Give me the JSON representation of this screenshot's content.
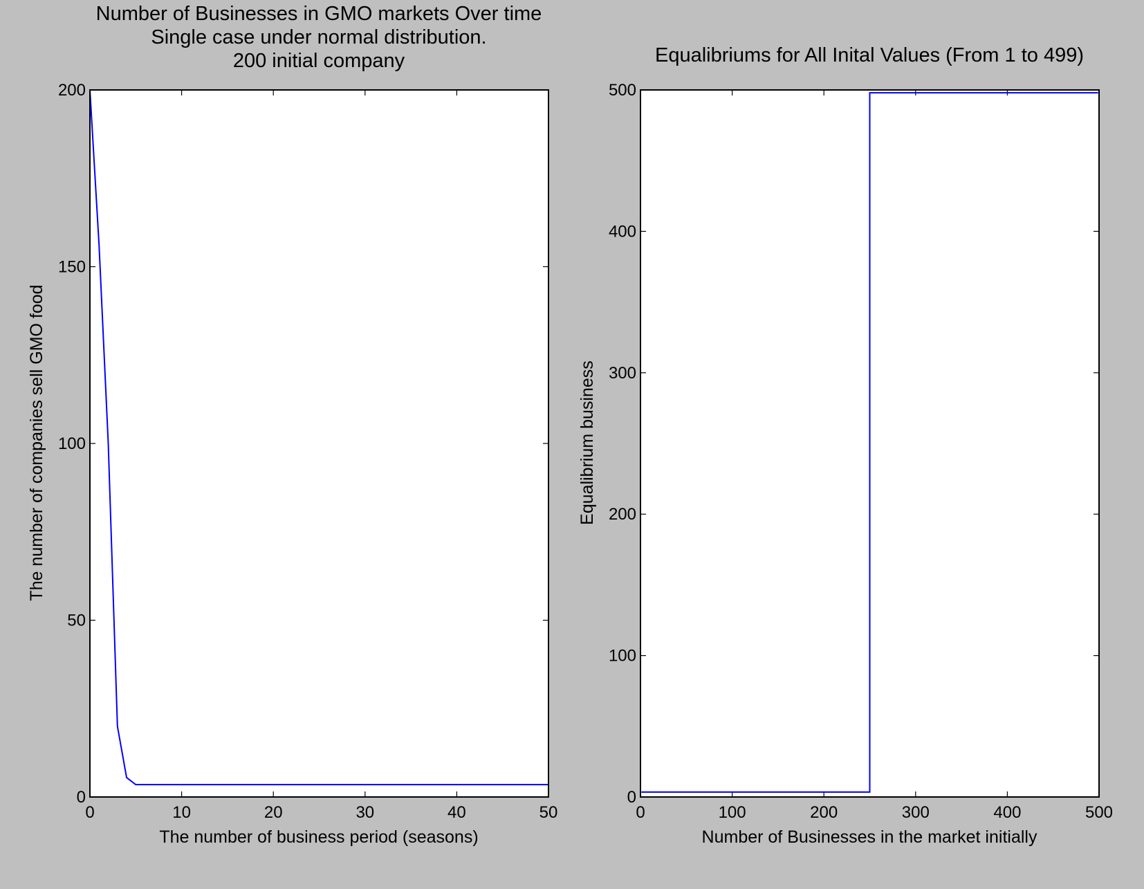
{
  "figure": {
    "background": "#bfbfbf",
    "axes_background": "#ffffff",
    "line_color": "#0000ff"
  },
  "chart_data": [
    {
      "type": "line",
      "title_lines": [
        "Number of Businesses in GMO markets Over time",
        "Single case under normal distribution.",
        "200 initial company"
      ],
      "xlabel": "The number of business period (seasons)",
      "ylabel": "The number of companies sell GMO food",
      "xlim": [
        0,
        50
      ],
      "ylim": [
        0,
        200
      ],
      "xticks": [
        0,
        10,
        20,
        30,
        40,
        50
      ],
      "yticks": [
        0,
        50,
        100,
        150,
        200
      ],
      "xtick_labels": [
        "0",
        "10",
        "20",
        "30",
        "40",
        "50"
      ],
      "ytick_labels": [
        "0",
        "50",
        "100",
        "150",
        "200"
      ],
      "grid": false,
      "series": [
        {
          "color": "#0000ff",
          "x": [
            0,
            1,
            2,
            3,
            4,
            5,
            6,
            10,
            20,
            30,
            40,
            50
          ],
          "y": [
            200,
            156,
            100,
            20,
            5.5,
            3.5,
            3.5,
            3.5,
            3.5,
            3.5,
            3.5,
            3.5
          ]
        }
      ]
    },
    {
      "type": "line",
      "title_lines": [
        "Equalibriums for All Inital Values (From 1 to 499)"
      ],
      "xlabel": "Number of Businesses in the market initially",
      "ylabel": "Equalibrium business",
      "xlim": [
        0,
        500
      ],
      "ylim": [
        0,
        500
      ],
      "xticks": [
        0,
        100,
        200,
        300,
        400,
        500
      ],
      "yticks": [
        0,
        100,
        200,
        300,
        400,
        500
      ],
      "xtick_labels": [
        "0",
        "100",
        "200",
        "300",
        "400",
        "500"
      ],
      "ytick_labels": [
        "0",
        "100",
        "200",
        "300",
        "400",
        "500"
      ],
      "grid": false,
      "series": [
        {
          "color": "#0000ff",
          "x": [
            1,
            250,
            250,
            499
          ],
          "y": [
            3.5,
            3.5,
            498,
            498
          ]
        }
      ]
    }
  ]
}
